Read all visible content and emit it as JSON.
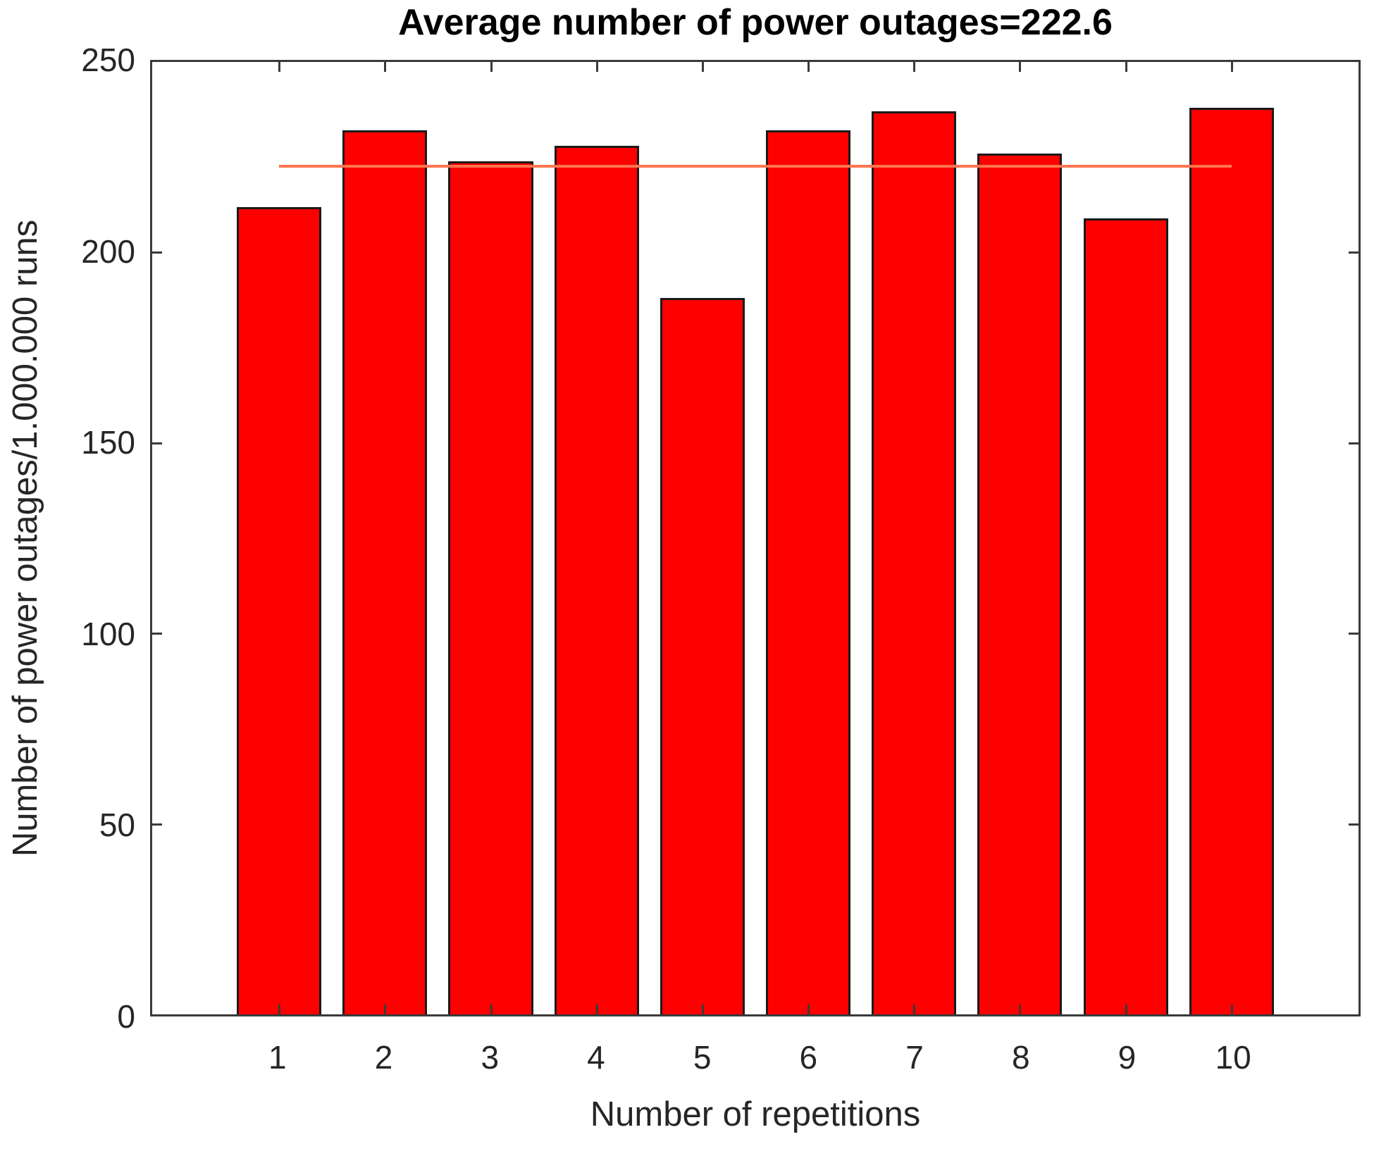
{
  "chart_data": {
    "type": "bar",
    "title": "Average number of power outages=222.6",
    "xlabel": "Number of repetitions",
    "ylabel": "Number of power outages/1.000.000 runs",
    "categories": [
      1,
      2,
      3,
      4,
      5,
      6,
      7,
      8,
      9,
      10
    ],
    "values": [
      212,
      232,
      224,
      228,
      188,
      232,
      237,
      226,
      209,
      238
    ],
    "average": 222.6,
    "average_line": {
      "y": 222.6,
      "x_start": 1,
      "x_end": 10,
      "color": "#ff7450"
    },
    "ylim": [
      0,
      250
    ],
    "yticks": [
      0,
      50,
      100,
      150,
      200,
      250
    ],
    "xlim": [
      -0.2,
      11.2
    ],
    "bar_width": 0.8,
    "bar_color": "#ff0000",
    "bar_edge_color": "#1a1a1a",
    "axis_color": "#3a3a3a",
    "grid": false,
    "legend_position": "none"
  }
}
